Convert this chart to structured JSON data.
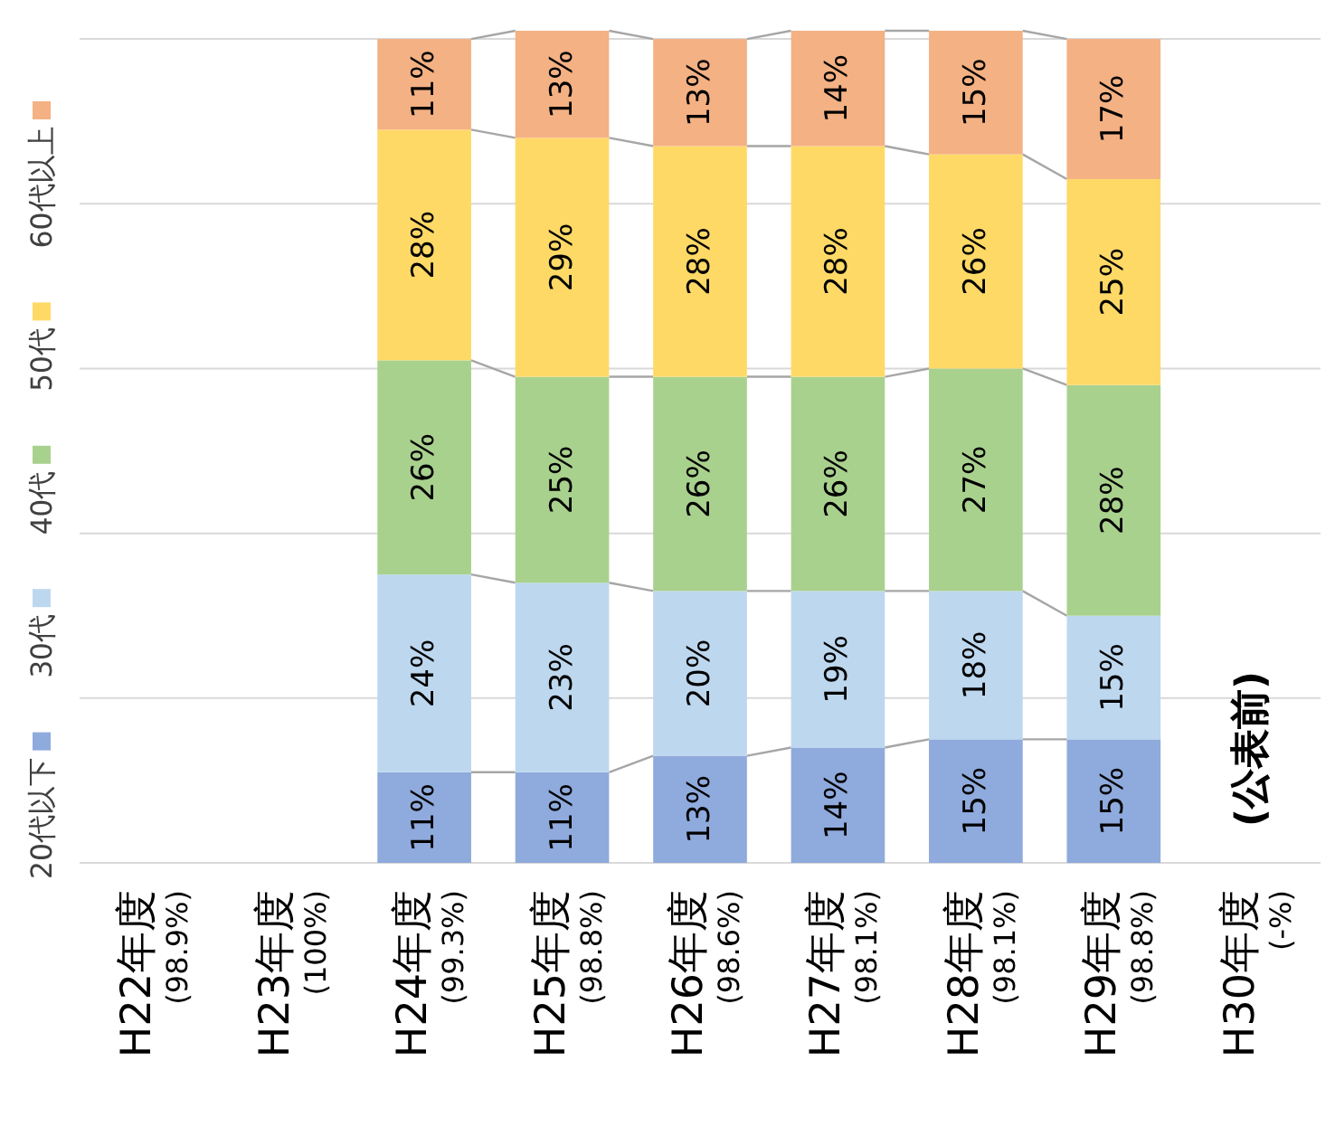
{
  "chart_data": {
    "type": "bar",
    "stacked": true,
    "categories": [
      "H22年度\n(98.9%)",
      "H23年度\n(100%)",
      "H24年度\n(99.3%)",
      "H25年度\n(98.8%)",
      "H26年度\n(98.6%)",
      "H27年度\n(98.1%)",
      "H28年度\n(98.1%)",
      "H29年度\n(98.8%)",
      "H30年度\n(-%)"
    ],
    "series": [
      {
        "name": "20代以下",
        "color": "#8faadc",
        "values": [
          null,
          null,
          11,
          11,
          13,
          14,
          15,
          15,
          null
        ],
        "value_labels": [
          null,
          null,
          "11%",
          "11%",
          "13%",
          "14%",
          "15%",
          "15%",
          null
        ]
      },
      {
        "name": "30代",
        "color": "#bdd7ee",
        "values": [
          null,
          null,
          24,
          23,
          20,
          19,
          18,
          15,
          null
        ],
        "value_labels": [
          null,
          null,
          "24%",
          "23%",
          "20%",
          "19%",
          "18%",
          "15%",
          null
        ]
      },
      {
        "name": "40代",
        "color": "#a9d18e",
        "values": [
          null,
          null,
          26,
          25,
          26,
          26,
          27,
          28,
          null
        ],
        "value_labels": [
          null,
          null,
          "26%",
          "25%",
          "26%",
          "26%",
          "27%",
          "28%",
          null
        ]
      },
      {
        "name": "50代",
        "color": "#ffd966",
        "values": [
          null,
          null,
          28,
          29,
          28,
          28,
          26,
          25,
          null
        ],
        "value_labels": [
          null,
          null,
          "28%",
          "29%",
          "28%",
          "28%",
          "26%",
          "25%",
          null
        ]
      },
      {
        "name": "60代以上",
        "color": "#f4b183",
        "values": [
          null,
          null,
          11,
          13,
          13,
          14,
          15,
          17,
          null
        ],
        "value_labels": [
          null,
          null,
          "11%",
          "13%",
          "13%",
          "14%",
          "15%",
          "17%",
          null
        ]
      }
    ],
    "ylim": [
      0,
      101
    ],
    "yticks": [
      {
        "value": 0,
        "label": null
      },
      {
        "value": 20,
        "label": null
      },
      {
        "value": 40,
        "label": null
      },
      {
        "value": 60,
        "label": null
      },
      {
        "value": 80,
        "label": null
      },
      {
        "value": 100,
        "label": null
      }
    ],
    "grid": true,
    "tick_labels": "x",
    "legend": "left",
    "annotations": [
      "(公表前)"
    ]
  }
}
